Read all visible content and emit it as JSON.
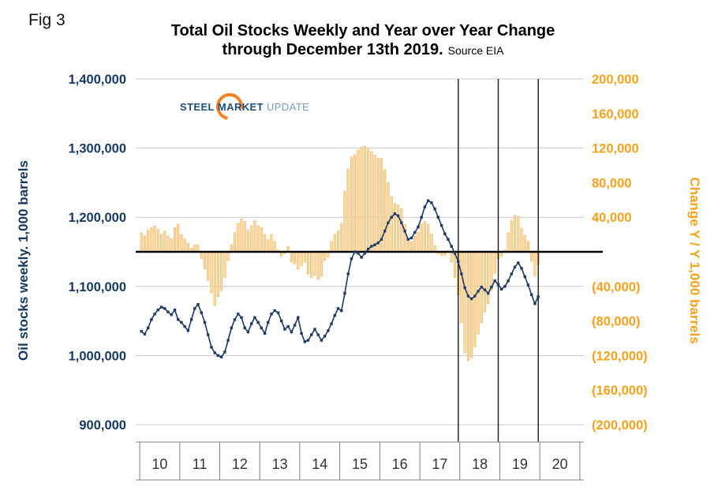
{
  "page": {
    "fig_label": "Fig 3"
  },
  "header": {
    "title": "Total Oil Stocks Weekly and Year over Year Change",
    "subtitle": "through December 13th 2019.",
    "source": "Source EIA"
  },
  "logo": {
    "word1": "STEEL",
    "word2": "MARKET",
    "word3": "UPDATE"
  },
  "chart_data": {
    "type": "combo",
    "title": "Total Oil Stocks Weekly and Year over Year Change through December 13th 2019",
    "source": "EIA",
    "grid": true,
    "x_axis": {
      "domain": [
        2009.9,
        2021.1
      ],
      "year_ticks": [
        2010,
        2011,
        2012,
        2013,
        2014,
        2015,
        2016,
        2017,
        2018,
        2019,
        2020,
        2021
      ],
      "labels": [
        {
          "t": 2010.5,
          "text": "10"
        },
        {
          "t": 2011.5,
          "text": "11"
        },
        {
          "t": 2012.5,
          "text": "12"
        },
        {
          "t": 2013.5,
          "text": "13"
        },
        {
          "t": 2014.5,
          "text": "14"
        },
        {
          "t": 2015.5,
          "text": "15"
        },
        {
          "t": 2016.5,
          "text": "16"
        },
        {
          "t": 2017.5,
          "text": "17"
        },
        {
          "t": 2018.5,
          "text": "18"
        },
        {
          "t": 2019.5,
          "text": "19"
        },
        {
          "t": 2020.5,
          "text": "20"
        }
      ]
    },
    "left_axis": {
      "label": "Oil stocks weekly. 1,000 barrels",
      "range": [
        900000,
        1400000
      ],
      "color": "#17375E",
      "ticks": [
        {
          "v": 1400000,
          "label": "1,400,000"
        },
        {
          "v": 1300000,
          "label": "1,300,000"
        },
        {
          "v": 1200000,
          "label": "1,200,000"
        },
        {
          "v": 1100000,
          "label": "1,100,000"
        },
        {
          "v": 1000000,
          "label": "1,000,000"
        },
        {
          "v": 900000,
          "label": "900,000"
        }
      ]
    },
    "right_axis": {
      "label": "Change Y / Y 1,000 barrels",
      "range": [
        -200000,
        200000
      ],
      "color": "#F9A11B",
      "ticks": [
        {
          "v": 200000,
          "label": "200,000"
        },
        {
          "v": 160000,
          "label": "160,000"
        },
        {
          "v": 120000,
          "label": "120,000"
        },
        {
          "v": 80000,
          "label": "80,000"
        },
        {
          "v": 40000,
          "label": "40,000"
        },
        {
          "v": -40000,
          "label": "(40,000)"
        },
        {
          "v": -80000,
          "label": "(80,000)"
        },
        {
          "v": -120000,
          "label": "(120,000)"
        },
        {
          "v": -160000,
          "label": "(160,000)"
        },
        {
          "v": -200000,
          "label": "(200,000)"
        }
      ]
    },
    "zero_line": {
      "value": 0,
      "color": "#000000"
    },
    "event_lines": [
      2017.96,
      2018.96,
      2019.96
    ],
    "series": [
      {
        "name": "Oil stocks weekly",
        "type": "line",
        "color": "#1F3864",
        "x_start": 2010.042,
        "x_step": 0.083333,
        "values": [
          1035000,
          1031000,
          1040000,
          1052000,
          1060000,
          1066000,
          1070000,
          1068000,
          1063000,
          1059000,
          1066000,
          1052000,
          1048000,
          1042000,
          1036000,
          1052000,
          1068000,
          1074000,
          1062000,
          1048000,
          1030000,
          1012000,
          1004000,
          1000000,
          998000,
          1005000,
          1022000,
          1040000,
          1052000,
          1060000,
          1055000,
          1040000,
          1034000,
          1046000,
          1055000,
          1048000,
          1040000,
          1032000,
          1048000,
          1060000,
          1065000,
          1062000,
          1050000,
          1038000,
          1042000,
          1034000,
          1044000,
          1055000,
          1032000,
          1020000,
          1022000,
          1030000,
          1038000,
          1030000,
          1022000,
          1028000,
          1036000,
          1046000,
          1058000,
          1068000,
          1065000,
          1090000,
          1118000,
          1140000,
          1150000,
          1148000,
          1142000,
          1148000,
          1154000,
          1158000,
          1160000,
          1163000,
          1168000,
          1180000,
          1192000,
          1200000,
          1205000,
          1202000,
          1192000,
          1180000,
          1168000,
          1170000,
          1178000,
          1186000,
          1200000,
          1215000,
          1224000,
          1221000,
          1212000,
          1200000,
          1188000,
          1176000,
          1168000,
          1158000,
          1148000,
          1136000,
          1118000,
          1098000,
          1086000,
          1082000,
          1086000,
          1093000,
          1099000,
          1095000,
          1090000,
          1099000,
          1108000,
          1103000,
          1096000,
          1100000,
          1108000,
          1118000,
          1128000,
          1134000,
          1126000,
          1114000,
          1102000,
          1088000,
          1075000,
          1085000
        ]
      },
      {
        "name": "Change Y/Y",
        "type": "bar",
        "fill": "#FBD9A6",
        "edge": "#F1A93F",
        "x_start": 2010.042,
        "x_step": 0.083333,
        "values": [
          22000,
          18000,
          25000,
          28000,
          30000,
          26000,
          20000,
          24000,
          18000,
          15000,
          28000,
          32000,
          20000,
          15000,
          10000,
          4000,
          8000,
          8000,
          -8000,
          -20000,
          -33000,
          -47000,
          -62000,
          -52000,
          -45000,
          -30000,
          -10000,
          8000,
          22000,
          33000,
          38000,
          35000,
          25000,
          30000,
          36000,
          30000,
          28000,
          20000,
          14000,
          20000,
          12000,
          2000,
          -5000,
          -2000,
          6000,
          -12000,
          -14000,
          -20000,
          -16000,
          -12000,
          -26000,
          -30000,
          -27000,
          -32000,
          -28000,
          -10000,
          -6000,
          12000,
          20000,
          24000,
          33000,
          70000,
          96000,
          110000,
          112000,
          118000,
          121000,
          122000,
          119000,
          116000,
          112000,
          108000,
          108000,
          95000,
          80000,
          64000,
          56000,
          54000,
          50000,
          32000,
          15000,
          12000,
          18000,
          23000,
          32000,
          35000,
          32000,
          21000,
          7000,
          -2000,
          -4000,
          -4000,
          0,
          -12000,
          -30000,
          -50000,
          -82000,
          -117000,
          -126000,
          -122000,
          -110000,
          -95000,
          -82000,
          -70000,
          -60000,
          -45000,
          -25000,
          -8000,
          -5000,
          2000,
          22000,
          36000,
          42000,
          41000,
          27000,
          19000,
          12000,
          -11000,
          -28000,
          -15000
        ]
      }
    ]
  }
}
